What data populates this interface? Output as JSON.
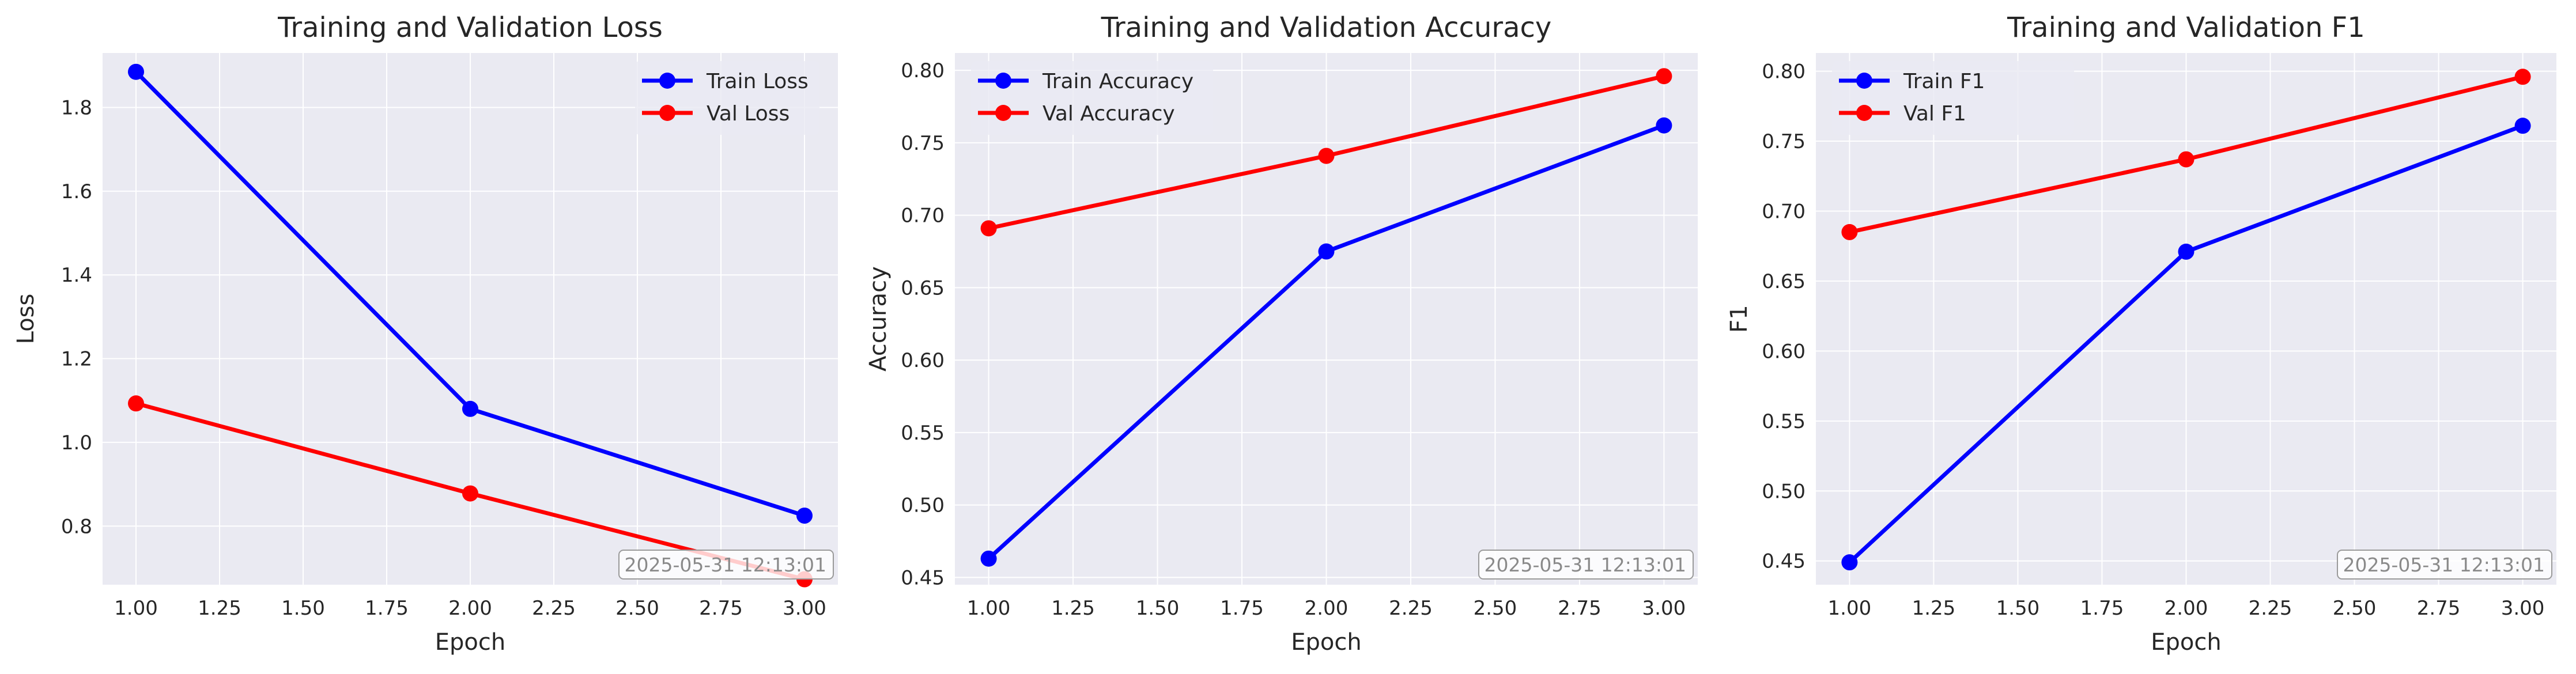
{
  "chart_data": [
    {
      "type": "line",
      "title": "Training and Validation Loss",
      "xlabel": "Epoch",
      "ylabel": "Loss",
      "x": [
        1.0,
        2.0,
        3.0
      ],
      "xlim": [
        0.9,
        3.1
      ],
      "ylim": [
        0.66,
        1.93
      ],
      "xticks": [
        "1.00",
        "1.25",
        "1.50",
        "1.75",
        "2.00",
        "2.25",
        "2.50",
        "2.75",
        "3.00"
      ],
      "yticks": [
        "0.8",
        "1.0",
        "1.2",
        "1.4",
        "1.6",
        "1.8"
      ],
      "series": [
        {
          "name": "Train Loss",
          "color": "#0000ff",
          "values": [
            1.885,
            1.08,
            0.825
          ]
        },
        {
          "name": "Val Loss",
          "color": "#ff0000",
          "values": [
            1.093,
            0.878,
            0.673
          ]
        }
      ],
      "legend": "top-right",
      "grid": true,
      "timestamp": "2025-05-31 12:13:01"
    },
    {
      "type": "line",
      "title": "Training and Validation Accuracy",
      "xlabel": "Epoch",
      "ylabel": "Accuracy",
      "x": [
        1.0,
        2.0,
        3.0
      ],
      "xlim": [
        0.9,
        3.1
      ],
      "ylim": [
        0.445,
        0.812
      ],
      "xticks": [
        "1.00",
        "1.25",
        "1.50",
        "1.75",
        "2.00",
        "2.25",
        "2.50",
        "2.75",
        "3.00"
      ],
      "yticks": [
        "0.45",
        "0.50",
        "0.55",
        "0.60",
        "0.65",
        "0.70",
        "0.75",
        "0.80"
      ],
      "series": [
        {
          "name": "Train Accuracy",
          "color": "#0000ff",
          "values": [
            0.463,
            0.675,
            0.762
          ]
        },
        {
          "name": "Val Accuracy",
          "color": "#ff0000",
          "values": [
            0.691,
            0.741,
            0.796
          ]
        }
      ],
      "legend": "top-left",
      "grid": true,
      "timestamp": "2025-05-31 12:13:01"
    },
    {
      "type": "line",
      "title": "Training and Validation F1",
      "xlabel": "Epoch",
      "ylabel": "F1",
      "x": [
        1.0,
        2.0,
        3.0
      ],
      "xlim": [
        0.9,
        3.1
      ],
      "ylim": [
        0.433,
        0.813
      ],
      "xticks": [
        "1.00",
        "1.25",
        "1.50",
        "1.75",
        "2.00",
        "2.25",
        "2.50",
        "2.75",
        "3.00"
      ],
      "yticks": [
        "0.45",
        "0.50",
        "0.55",
        "0.60",
        "0.65",
        "0.70",
        "0.75",
        "0.80"
      ],
      "series": [
        {
          "name": "Train F1",
          "color": "#0000ff",
          "values": [
            0.449,
            0.671,
            0.761
          ]
        },
        {
          "name": "Val F1",
          "color": "#ff0000",
          "values": [
            0.685,
            0.737,
            0.796
          ]
        }
      ],
      "legend": "top-left",
      "grid": true,
      "timestamp": "2025-05-31 12:13:01"
    }
  ]
}
